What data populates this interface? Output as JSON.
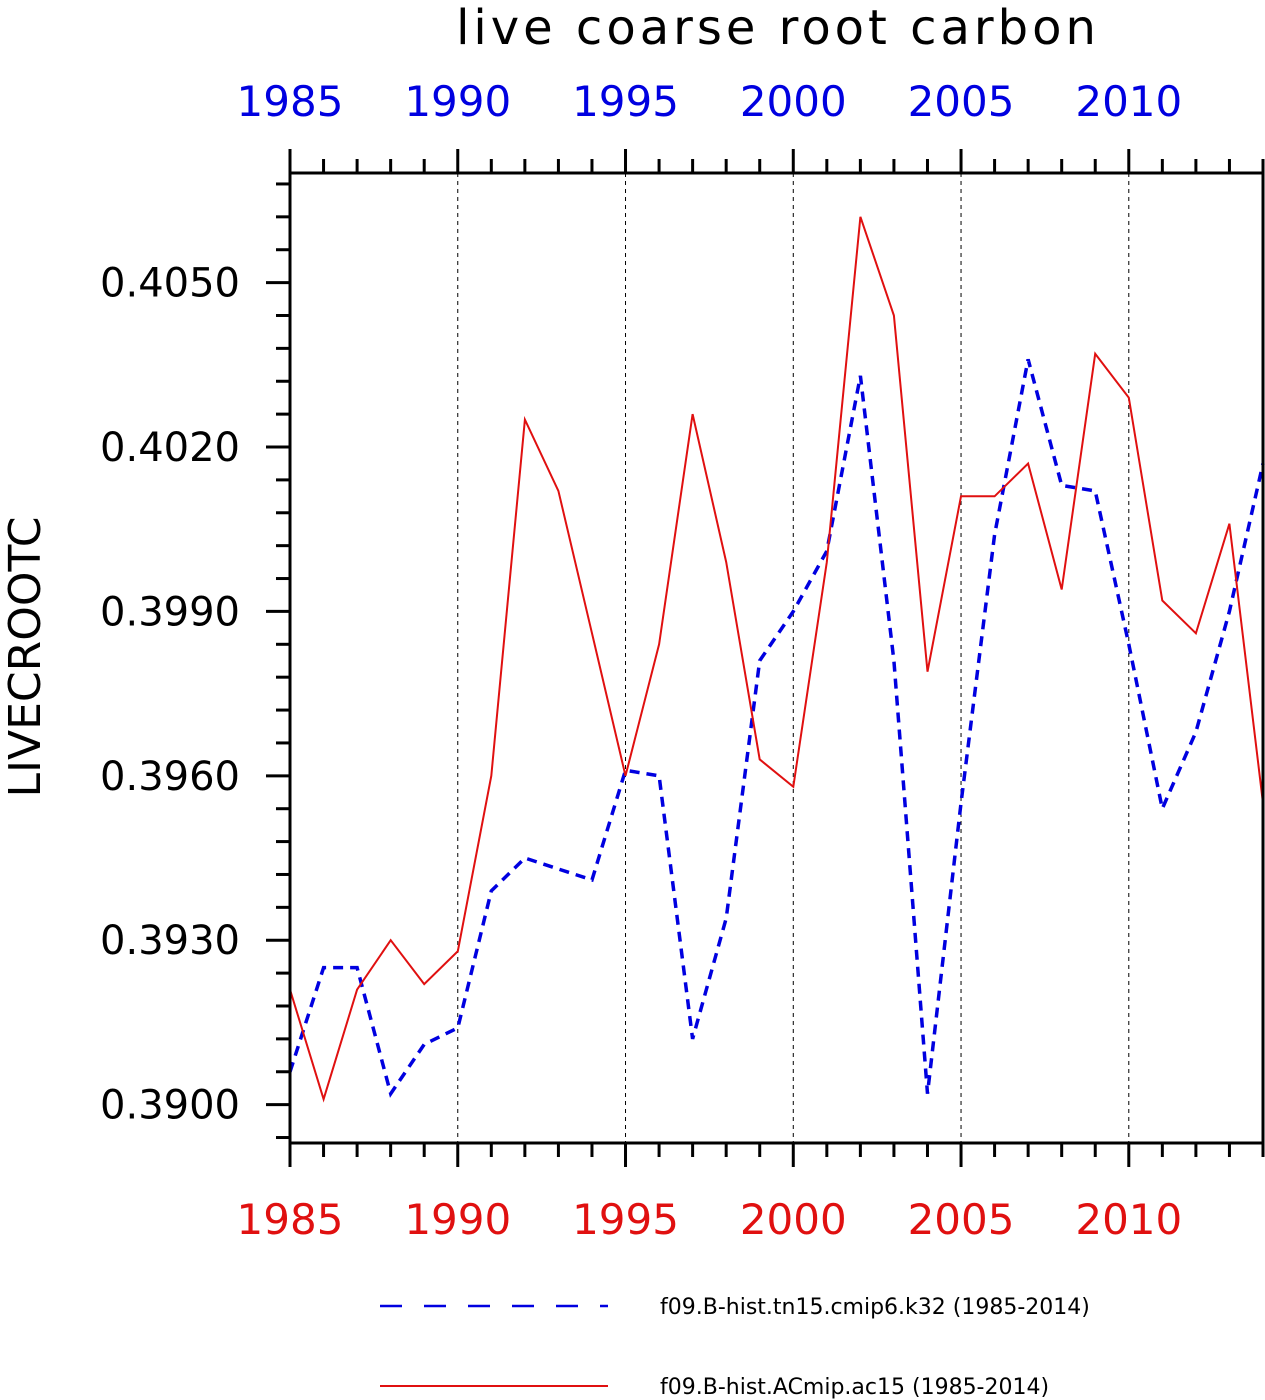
{
  "chart_data": {
    "type": "line",
    "title": "live coarse root carbon",
    "ylabel": "LIVECROOTC",
    "xlim": [
      1985,
      2014
    ],
    "ylim": [
      0.3893,
      0.407
    ],
    "yticks": [
      0.39,
      0.393,
      0.396,
      0.399,
      0.402,
      0.405
    ],
    "ytick_labels": [
      "0.3900",
      "0.3930",
      "0.3960",
      "0.3990",
      "0.4020",
      "0.4050"
    ],
    "xticks": [
      1985,
      1990,
      1995,
      2000,
      2005,
      2010
    ],
    "xtick_labels_top": [
      "1985",
      "1990",
      "1995",
      "2000",
      "2005",
      "2010"
    ],
    "xtick_labels_bottom": [
      "1985",
      "1990",
      "1995",
      "2000",
      "2005",
      "2010"
    ],
    "vertical_gridlines": [
      1990,
      1995,
      2000,
      2005,
      2010
    ],
    "legend_placement": "bottom",
    "series": [
      {
        "name": "f09.B-hist.tn15.cmip6.k32 (1985-2014)",
        "color": "#0000e0",
        "style": "dashed",
        "x": [
          1985,
          1986,
          1987,
          1988,
          1989,
          1990,
          1991,
          1992,
          1993,
          1994,
          1995,
          1996,
          1997,
          1998,
          1999,
          2000,
          2001,
          2002,
          2003,
          2004,
          2005,
          2006,
          2007,
          2008,
          2009,
          2010,
          2011,
          2012,
          2013,
          2014
        ],
        "values": [
          0.3906,
          0.3925,
          0.3925,
          0.3902,
          0.3911,
          0.3914,
          0.3939,
          0.3945,
          0.3943,
          0.3941,
          0.3961,
          0.396,
          0.3912,
          0.3934,
          0.3981,
          0.399,
          0.4001,
          0.4033,
          0.3981,
          0.3902,
          0.3955,
          0.4004,
          0.4036,
          0.4013,
          0.4012,
          0.3984,
          0.3954,
          0.3968,
          0.399,
          0.4017
        ]
      },
      {
        "name": "f09.B-hist.ACmip.ac15 (1985-2014)",
        "color": "#e01010",
        "style": "solid",
        "x": [
          1985,
          1986,
          1987,
          1988,
          1989,
          1990,
          1991,
          1992,
          1993,
          1994,
          1995,
          1996,
          1997,
          1998,
          1999,
          2000,
          2001,
          2002,
          2003,
          2004,
          2005,
          2006,
          2007,
          2008,
          2009,
          2010,
          2011,
          2012,
          2013,
          2014
        ],
        "values": [
          0.3921,
          0.3901,
          0.3921,
          0.393,
          0.3922,
          0.3928,
          0.396,
          0.4025,
          0.4012,
          0.3986,
          0.396,
          0.3984,
          0.4026,
          0.3999,
          0.3963,
          0.3958,
          0.3999,
          0.4062,
          0.4044,
          0.3979,
          0.4011,
          0.4011,
          0.4017,
          0.3994,
          0.4037,
          0.4029,
          0.3992,
          0.3986,
          0.4006,
          0.3955
        ]
      }
    ]
  }
}
